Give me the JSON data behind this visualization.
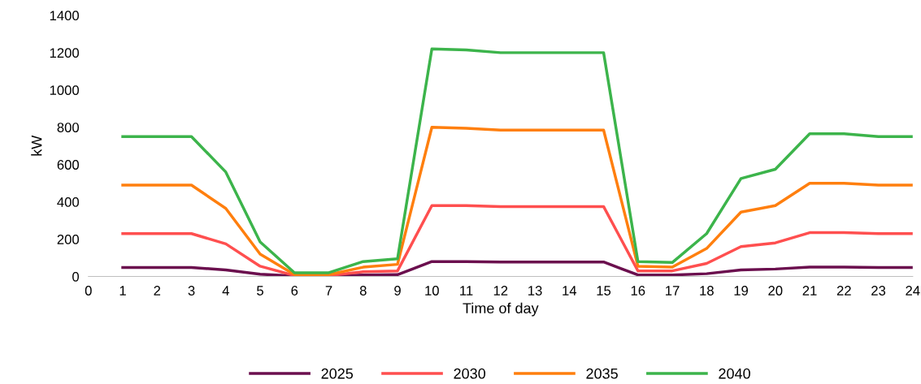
{
  "chart_data": {
    "type": "line",
    "xlabel": "Time of day",
    "ylabel": "kW",
    "x": [
      1,
      2,
      3,
      4,
      5,
      6,
      7,
      8,
      9,
      10,
      11,
      12,
      13,
      14,
      15,
      16,
      17,
      18,
      19,
      20,
      21,
      22,
      23,
      24
    ],
    "series": [
      {
        "name": "2025",
        "color": "#6b0f4e",
        "values": [
          48,
          48,
          48,
          35,
          12,
          2,
          2,
          8,
          10,
          80,
          80,
          78,
          78,
          78,
          78,
          8,
          8,
          15,
          35,
          40,
          50,
          50,
          48,
          48
        ]
      },
      {
        "name": "2030",
        "color": "#ff4f4f",
        "values": [
          230,
          230,
          230,
          175,
          55,
          5,
          5,
          25,
          30,
          380,
          380,
          375,
          375,
          375,
          375,
          30,
          30,
          70,
          160,
          180,
          235,
          235,
          230,
          230
        ]
      },
      {
        "name": "2035",
        "color": "#ff7f0e",
        "values": [
          490,
          490,
          490,
          365,
          120,
          10,
          10,
          50,
          65,
          800,
          795,
          785,
          785,
          785,
          785,
          55,
          50,
          150,
          345,
          380,
          500,
          500,
          490,
          490
        ]
      },
      {
        "name": "2040",
        "color": "#3cb44b",
        "values": [
          750,
          750,
          750,
          560,
          185,
          20,
          20,
          80,
          95,
          1220,
          1215,
          1200,
          1200,
          1200,
          1200,
          80,
          75,
          230,
          525,
          575,
          765,
          765,
          750,
          750
        ]
      }
    ],
    "xlim": [
      0,
      24
    ],
    "xticks": [
      0,
      1,
      2,
      3,
      4,
      5,
      6,
      7,
      8,
      9,
      10,
      11,
      12,
      13,
      14,
      15,
      16,
      17,
      18,
      19,
      20,
      21,
      22,
      23,
      24
    ],
    "ylim": [
      0,
      1400
    ],
    "yticks": [
      0,
      200,
      400,
      600,
      800,
      1000,
      1200,
      1400
    ],
    "grid": false,
    "legend": "bottom",
    "marker": "none",
    "line_style": "solid"
  }
}
